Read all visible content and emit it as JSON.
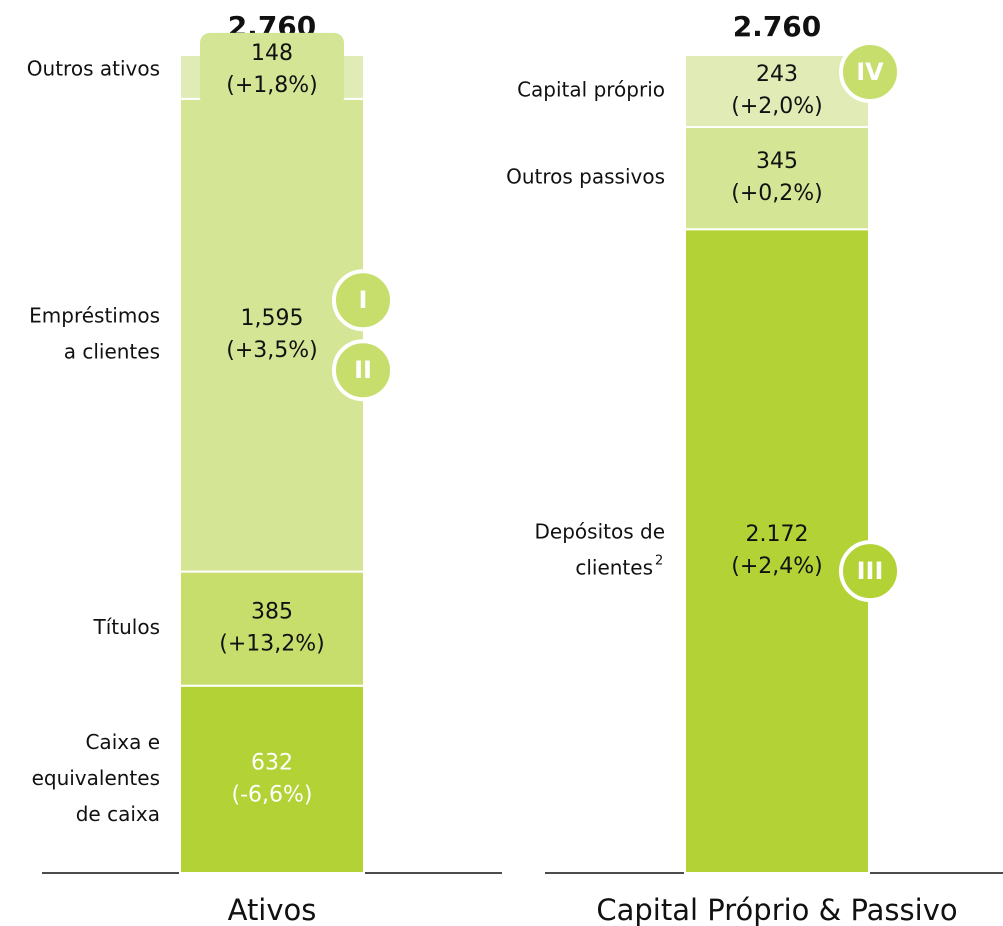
{
  "chart_data": {
    "type": "stacked_bar",
    "ylim": [
      0,
      2760
    ],
    "bars": [
      {
        "name": "Ativos",
        "total": 2760,
        "total_label": "2.760",
        "segments": [
          {
            "name": [
              "Caixa e",
              "equivalentes",
              "de caixa"
            ],
            "value": 632,
            "change": "(-6,6%)",
            "color": "#b2d235",
            "text_color": "#ffffff",
            "badges": []
          },
          {
            "name": [
              "Títulos"
            ],
            "value": 385,
            "change": "(+13,2%)",
            "color": "#c7de6c",
            "text_color": "#111111",
            "badges": []
          },
          {
            "name": [
              "Empréstimos",
              "a clientes"
            ],
            "value": 1595,
            "value_label": "1,595",
            "change": "(+3,5%)",
            "color": "#d4e595",
            "text_color": "#111111",
            "badges": [
              "I",
              "II"
            ]
          },
          {
            "name": [
              "Outros ativos"
            ],
            "value": 148,
            "change": "(+1,8%)",
            "color": "#e0ebb6",
            "text_color": "#111111",
            "badges": []
          }
        ]
      },
      {
        "name": "Capital Próprio & Passivo",
        "total": 2760,
        "total_label": "2.760",
        "segments": [
          {
            "name": [
              "Depósitos de",
              "clientes"
            ],
            "note": "2",
            "value": 2172,
            "value_label": "2.172",
            "change": "(+2,4%)",
            "color": "#b2d235",
            "text_color": "#111111",
            "badges": [
              "III"
            ]
          },
          {
            "name": [
              "Outros passivos"
            ],
            "value": 345,
            "change": "(+0,2%)",
            "color": "#d4e595",
            "text_color": "#111111",
            "badges": []
          },
          {
            "name": [
              "Capital próprio"
            ],
            "value": 243,
            "change": "(+2,0%)",
            "color": "#e0ebb6",
            "text_color": "#111111",
            "badges": [
              "IV"
            ]
          }
        ]
      }
    ]
  }
}
